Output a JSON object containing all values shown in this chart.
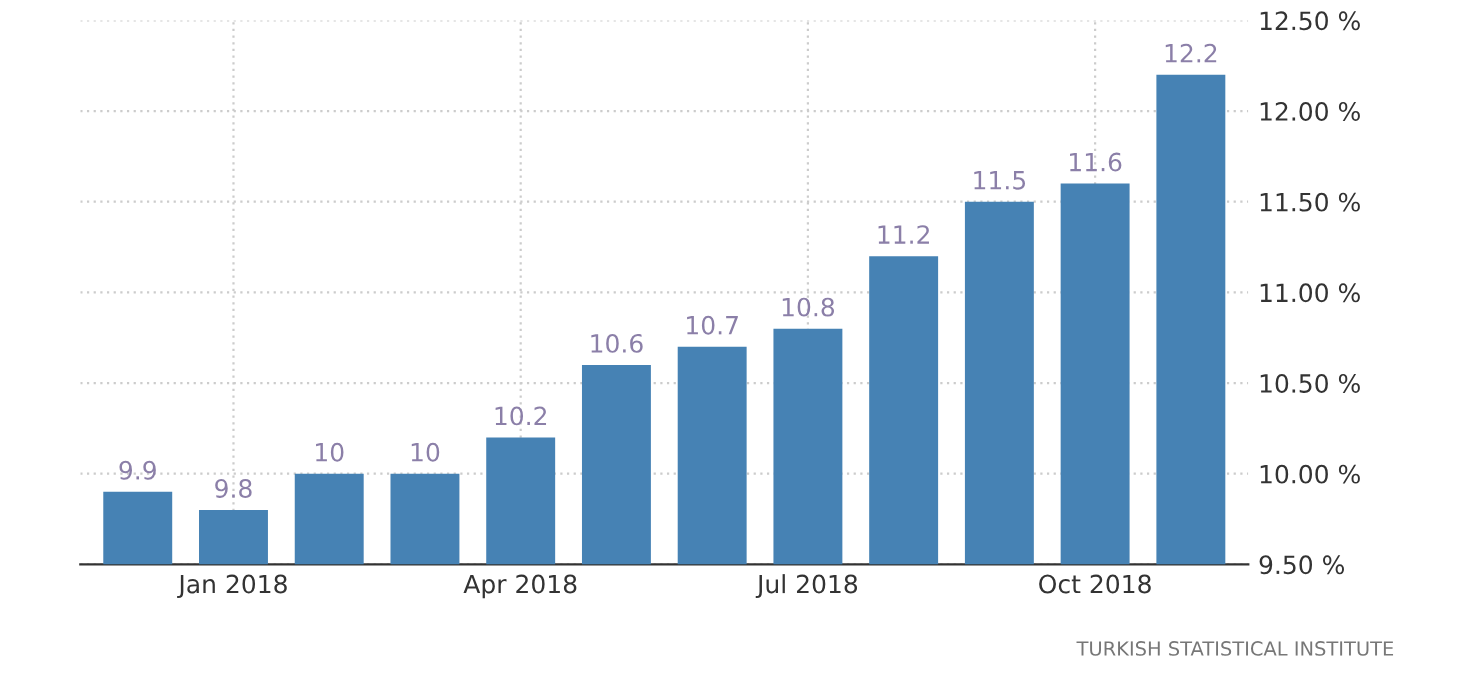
{
  "chart_data": {
    "type": "bar",
    "categories": [
      null,
      "Jan 2018",
      null,
      null,
      "Apr 2018",
      null,
      null,
      "Jul 2018",
      null,
      null,
      "Oct 2018",
      null
    ],
    "values": [
      9.9,
      9.8,
      10,
      10,
      10.2,
      10.6,
      10.7,
      10.8,
      11.2,
      11.5,
      11.6,
      12.2
    ],
    "color": "#4682b4",
    "data_labels": true,
    "ylim": [
      9.5,
      12.5
    ],
    "yticks": [
      {
        "value": 9.5,
        "label": "9.50 %"
      },
      {
        "value": 10,
        "label": "10.00 %"
      },
      {
        "value": 10.5,
        "label": "10.50 %"
      },
      {
        "value": 11,
        "label": "11.00 %"
      },
      {
        "value": 11.5,
        "label": "11.50 %"
      },
      {
        "value": 12,
        "label": "12.00 %"
      },
      {
        "value": 12.5,
        "label": "12.50 %"
      }
    ],
    "grid": true,
    "annotations": [
      "TURKISH STATISTICAL INSTITUTE"
    ]
  }
}
